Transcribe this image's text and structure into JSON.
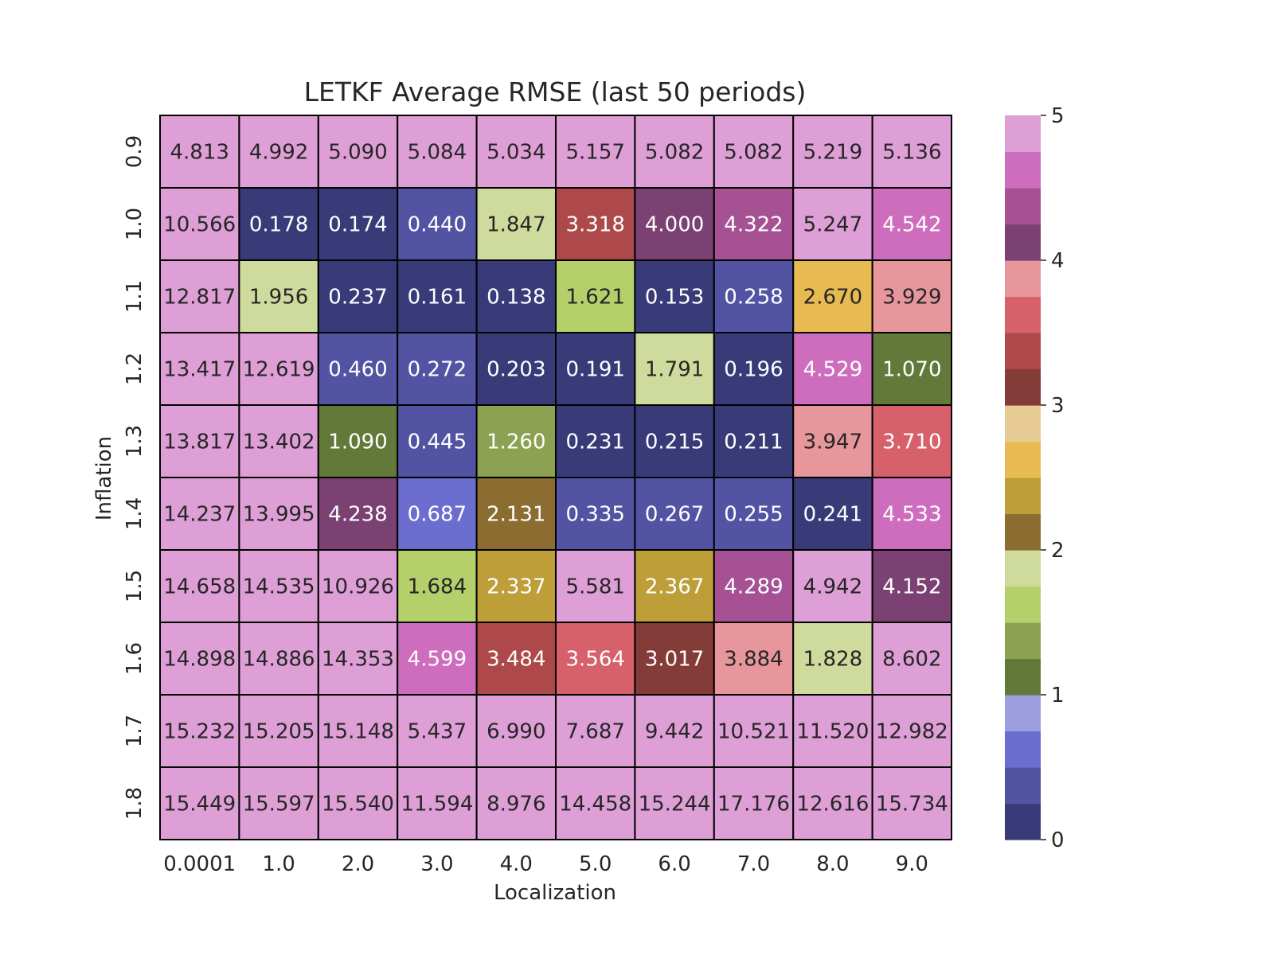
{
  "chart_data": {
    "type": "heatmap",
    "title": "LETKF Average RMSE (last 50 periods)",
    "xlabel": "Localization",
    "ylabel": "Inflation",
    "x_categories": [
      "0.0001",
      "1.0",
      "2.0",
      "3.0",
      "4.0",
      "5.0",
      "6.0",
      "7.0",
      "8.0",
      "9.0"
    ],
    "y_categories": [
      "0.9",
      "1.0",
      "1.1",
      "1.2",
      "1.3",
      "1.4",
      "1.5",
      "1.6",
      "1.7",
      "1.8"
    ],
    "values": [
      [
        "4.813",
        "4.992",
        "5.090",
        "5.084",
        "5.034",
        "5.157",
        "5.082",
        "5.082",
        "5.219",
        "5.136"
      ],
      [
        "10.566",
        "0.178",
        "0.174",
        "0.440",
        "1.847",
        "3.318",
        "4.000",
        "4.322",
        "5.247",
        "4.542"
      ],
      [
        "12.817",
        "1.956",
        "0.237",
        "0.161",
        "0.138",
        "1.621",
        "0.153",
        "0.258",
        "2.670",
        "3.929"
      ],
      [
        "13.417",
        "12.619",
        "0.460",
        "0.272",
        "0.203",
        "0.191",
        "1.791",
        "0.196",
        "4.529",
        "1.070"
      ],
      [
        "13.817",
        "13.402",
        "1.090",
        "0.445",
        "1.260",
        "0.231",
        "0.215",
        "0.211",
        "3.947",
        "3.710"
      ],
      [
        "14.237",
        "13.995",
        "4.238",
        "0.687",
        "2.131",
        "0.335",
        "0.267",
        "0.255",
        "0.241",
        "4.533"
      ],
      [
        "14.658",
        "14.535",
        "10.926",
        "1.684",
        "2.337",
        "5.581",
        "2.367",
        "4.289",
        "4.942",
        "4.152"
      ],
      [
        "14.898",
        "14.886",
        "14.353",
        "4.599",
        "3.484",
        "3.564",
        "3.017",
        "3.884",
        "1.828",
        "8.602"
      ],
      [
        "15.232",
        "15.205",
        "15.148",
        "5.437",
        "6.990",
        "7.687",
        "9.442",
        "10.521",
        "11.520",
        "12.982"
      ],
      [
        "15.449",
        "15.597",
        "15.540",
        "11.594",
        "8.976",
        "14.458",
        "15.244",
        "17.176",
        "12.616",
        "15.734"
      ]
    ],
    "colorbar": {
      "vmin": 0,
      "vmax": 5,
      "ticks": [
        "0",
        "1",
        "2",
        "3",
        "4",
        "5"
      ],
      "colormap": [
        "#393b79",
        "#5254a3",
        "#6b6ecf",
        "#9c9ede",
        "#637939",
        "#8ca252",
        "#b5cf6b",
        "#cedb9c",
        "#8c6d31",
        "#bd9e39",
        "#e7ba52",
        "#e7cb94",
        "#843c39",
        "#ad494a",
        "#d6616b",
        "#e7969c",
        "#7b4173",
        "#a55194",
        "#ce6dbd",
        "#de9ed6"
      ]
    },
    "cell_border_color": "#000000",
    "annotation_dark_text": "#262626",
    "annotation_light_text": "#ffffff"
  }
}
